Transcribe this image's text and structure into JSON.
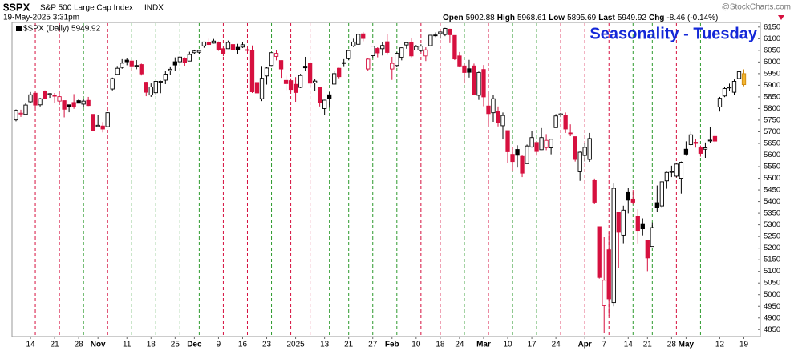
{
  "header": {
    "symbol": "$SPX",
    "name": "S&P 500 Large Cap Index",
    "exchange": "INDX",
    "date": "19-May-2025 3:31pm",
    "brand": "@StockCharts.com",
    "quote": [
      "Open",
      "5902.88",
      "High",
      "5968.61",
      "Low",
      "5895.69",
      "Last",
      "5949.92",
      "Chg",
      "-8.46 (-0.14%)"
    ]
  },
  "chart_data": {
    "type": "candlestick",
    "title": "Seasonality - Tuesday",
    "legend": "$SPX (Daily) 5949.92",
    "up_color": "#000000",
    "down_color": "#d6103f",
    "last_color": "#f2b630",
    "title_color": "#1428d8",
    "ylim": [
      4820,
      6170
    ],
    "yticks": [
      4850,
      4900,
      4950,
      5000,
      5050,
      5100,
      5150,
      5200,
      5250,
      5300,
      5350,
      5400,
      5450,
      5500,
      5550,
      5600,
      5650,
      5700,
      5750,
      5800,
      5850,
      5900,
      5950,
      6000,
      6050,
      6100,
      6150
    ],
    "categories": [
      null,
      null,
      null,
      "14",
      null,
      null,
      null,
      null,
      "21",
      null,
      null,
      null,
      null,
      "28",
      null,
      null,
      null,
      "Nov",
      null,
      null,
      null,
      null,
      null,
      "11",
      null,
      null,
      null,
      null,
      "18",
      null,
      null,
      null,
      null,
      "25",
      null,
      null,
      null,
      "Dec",
      null,
      null,
      null,
      null,
      "9",
      null,
      null,
      null,
      null,
      "16",
      null,
      null,
      null,
      null,
      "23",
      null,
      null,
      null,
      null,
      null,
      "2025",
      null,
      null,
      null,
      null,
      null,
      "13",
      null,
      null,
      null,
      null,
      "21",
      null,
      null,
      null,
      null,
      "27",
      null,
      null,
      null,
      "Feb",
      null,
      null,
      null,
      null,
      "10",
      null,
      null,
      null,
      null,
      "18",
      null,
      null,
      null,
      "24",
      null,
      null,
      null,
      null,
      "Mar",
      null,
      null,
      null,
      null,
      "10",
      null,
      null,
      null,
      null,
      "17",
      null,
      null,
      null,
      null,
      "24",
      null,
      null,
      null,
      null,
      null,
      "Apr",
      null,
      null,
      null,
      "7",
      null,
      null,
      null,
      null,
      "14",
      null,
      null,
      null,
      "21",
      null,
      null,
      null,
      null,
      "28",
      null,
      null,
      "May",
      null,
      null,
      null,
      null,
      null,
      null,
      "12",
      null,
      null,
      null,
      null,
      "19"
    ],
    "candles": [
      [
        5751,
        5796,
        5745,
        5792
      ],
      [
        5778,
        5795,
        5764,
        5780
      ],
      [
        5775,
        5822,
        5772,
        5815
      ],
      [
        5829,
        5871,
        5824,
        5859
      ],
      [
        5866,
        5870,
        5804,
        5815
      ],
      [
        5816,
        5846,
        5809,
        5842
      ],
      [
        5875,
        5878,
        5840,
        5841
      ],
      [
        5860,
        5866,
        5846,
        5864
      ],
      [
        5857,
        5867,
        5824,
        5853
      ],
      [
        5832,
        5863,
        5825,
        5851
      ],
      [
        5834,
        5834,
        5762,
        5797
      ],
      [
        5816,
        5817,
        5784,
        5809
      ],
      [
        5826,
        5862,
        5799,
        5808
      ],
      [
        5834,
        5842,
        5823,
        5823
      ],
      [
        5819,
        5842,
        5807,
        5832
      ],
      [
        5835,
        5850,
        5811,
        5813
      ],
      [
        5775,
        5775,
        5703,
        5705
      ],
      [
        5723,
        5772,
        5723,
        5728
      ],
      [
        5725,
        5742,
        5697,
        5712
      ],
      [
        5722,
        5784,
        5722,
        5782
      ],
      [
        5884,
        5933,
        5878,
        5929
      ],
      [
        5947,
        5983,
        5946,
        5973
      ],
      [
        5977,
        6012,
        5971,
        5995
      ],
      [
        6008,
        6018,
        5986,
        6001
      ],
      [
        6004,
        6007,
        5960,
        5983
      ],
      [
        5985,
        6008,
        5969,
        5985
      ],
      [
        5989,
        5993,
        5942,
        5949
      ],
      [
        5913,
        5915,
        5853,
        5870
      ],
      [
        5858,
        5908,
        5850,
        5893
      ],
      [
        5868,
        5918,
        5857,
        5917
      ],
      [
        5917,
        5920,
        5866,
        5917
      ],
      [
        5922,
        5963,
        5905,
        5948
      ],
      [
        5963,
        5981,
        5944,
        5969
      ],
      [
        6001,
        6020,
        5963,
        5987
      ],
      [
        6001,
        6025,
        5994,
        6021
      ],
      [
        6015,
        6020,
        5984,
        5998
      ],
      [
        6004,
        6044,
        6004,
        6032
      ],
      [
        6040,
        6053,
        6035,
        6047
      ],
      [
        6042,
        6052,
        6034,
        6049
      ],
      [
        6069,
        6087,
        6061,
        6086
      ],
      [
        6085,
        6100,
        6072,
        6075
      ],
      [
        6081,
        6099,
        6079,
        6090
      ],
      [
        6084,
        6088,
        6048,
        6052
      ],
      [
        6057,
        6065,
        6025,
        6034
      ],
      [
        6057,
        6092,
        6056,
        6084
      ],
      [
        6075,
        6079,
        6051,
        6051
      ],
      [
        6063,
        6078,
        6035,
        6051
      ],
      [
        6064,
        6085,
        6060,
        6074
      ],
      [
        6053,
        6058,
        6035,
        6050
      ],
      [
        6048,
        6071,
        5867,
        5872
      ],
      [
        5912,
        5935,
        5866,
        5867
      ],
      [
        5842,
        5983,
        5832,
        5930
      ],
      [
        5940,
        5978,
        5903,
        5974
      ],
      [
        5985,
        6040,
        5983,
        6040
      ],
      [
        6024,
        6050,
        6007,
        6037
      ],
      [
        6006,
        6007,
        5932,
        5970
      ],
      [
        5921,
        5941,
        5879,
        5907
      ],
      [
        5920,
        5930,
        5871,
        5882
      ],
      [
        5904,
        5935,
        5829,
        5869
      ],
      [
        5891,
        5949,
        5888,
        5942
      ],
      [
        5982,
        6022,
        5961,
        5975
      ],
      [
        5994,
        6000,
        5891,
        5909
      ],
      [
        5910,
        5927,
        5874,
        5918
      ],
      [
        5890,
        5890,
        5809,
        5827
      ],
      [
        5800,
        5838,
        5773,
        5836
      ],
      [
        5859,
        5871,
        5804,
        5843
      ],
      [
        5905,
        5960,
        5905,
        5950
      ],
      [
        5973,
        5975,
        5930,
        5937
      ],
      [
        5995,
        6012,
        5982,
        5997
      ],
      [
        6014,
        6051,
        6007,
        6049
      ],
      [
        6069,
        6100,
        6064,
        6086
      ],
      [
        6076,
        6119,
        6075,
        6119
      ],
      [
        6121,
        6129,
        6089,
        6101
      ],
      [
        5970,
        6017,
        5962,
        6012
      ],
      [
        6027,
        6069,
        6020,
        6068
      ],
      [
        6058,
        6063,
        6020,
        6039
      ],
      [
        6057,
        6086,
        6028,
        6071
      ],
      [
        6087,
        6121,
        6031,
        6041
      ],
      [
        5970,
        6022,
        5923,
        5994
      ],
      [
        5985,
        6042,
        5977,
        6037
      ],
      [
        6020,
        6062,
        6007,
        6061
      ],
      [
        6073,
        6085,
        6057,
        6083
      ],
      [
        6084,
        6101,
        6020,
        6026
      ],
      [
        6051,
        6073,
        6050,
        6066
      ],
      [
        6049,
        6076,
        6043,
        6068
      ],
      [
        6026,
        6063,
        6004,
        6052
      ],
      [
        6070,
        6115,
        6070,
        6115
      ],
      [
        6116,
        6127,
        6107,
        6115
      ],
      [
        6122,
        6129,
        6100,
        6129
      ],
      [
        6118,
        6147,
        6111,
        6144
      ],
      [
        6141,
        6143,
        6081,
        6117
      ],
      [
        6114,
        6114,
        6008,
        6013
      ],
      [
        6026,
        6043,
        5977,
        5983
      ],
      [
        5983,
        5992,
        5908,
        5955
      ],
      [
        5971,
        6009,
        5933,
        5956
      ],
      [
        5983,
        5993,
        5858,
        5861
      ],
      [
        5857,
        5959,
        5837,
        5955
      ],
      [
        5968,
        5987,
        5810,
        5850
      ],
      [
        5811,
        5866,
        5732,
        5778
      ],
      [
        5782,
        5860,
        5743,
        5842
      ],
      [
        5787,
        5809,
        5723,
        5739
      ],
      [
        5726,
        5783,
        5667,
        5770
      ],
      [
        5705,
        5705,
        5565,
        5614
      ],
      [
        5603,
        5636,
        5529,
        5572
      ],
      [
        5624,
        5642,
        5546,
        5599
      ],
      [
        5594,
        5598,
        5505,
        5522
      ],
      [
        5563,
        5645,
        5563,
        5639
      ],
      [
        5635,
        5703,
        5632,
        5675
      ],
      [
        5654,
        5655,
        5597,
        5615
      ],
      [
        5623,
        5716,
        5622,
        5675
      ],
      [
        5632,
        5690,
        5621,
        5663
      ],
      [
        5631,
        5670,
        5603,
        5668
      ],
      [
        5718,
        5776,
        5718,
        5768
      ],
      [
        5772,
        5781,
        5763,
        5777
      ],
      [
        5771,
        5783,
        5695,
        5712
      ],
      [
        5695,
        5732,
        5681,
        5693
      ],
      [
        5679,
        5679,
        5572,
        5581
      ],
      [
        5528,
        5615,
        5489,
        5612
      ],
      [
        5598,
        5651,
        5572,
        5633
      ],
      [
        5581,
        5695,
        5571,
        5671
      ],
      [
        5492,
        5499,
        5390,
        5397
      ],
      [
        5292,
        5292,
        5069,
        5074
      ],
      [
        4953,
        5247,
        4835,
        5062
      ],
      [
        5193,
        5267,
        4910,
        4982
      ],
      [
        4966,
        5481,
        4950,
        5457
      ],
      [
        5353,
        5354,
        5115,
        5268
      ],
      [
        5256,
        5382,
        5221,
        5363
      ],
      [
        5442,
        5460,
        5349,
        5406
      ],
      [
        5411,
        5450,
        5387,
        5397
      ],
      [
        5335,
        5367,
        5220,
        5276
      ],
      [
        5305,
        5328,
        5255,
        5283
      ],
      [
        5232,
        5232,
        5101,
        5158
      ],
      [
        5207,
        5310,
        5207,
        5288
      ],
      [
        5395,
        5469,
        5356,
        5376
      ],
      [
        5381,
        5486,
        5371,
        5485
      ],
      [
        5489,
        5528,
        5455,
        5525
      ],
      [
        5529,
        5554,
        5505,
        5529
      ],
      [
        5509,
        5563,
        5504,
        5561
      ],
      [
        5500,
        5572,
        5434,
        5569
      ],
      [
        5625,
        5659,
        5597,
        5604
      ],
      [
        5645,
        5700,
        5640,
        5687
      ],
      [
        5655,
        5669,
        5632,
        5650
      ],
      [
        5631,
        5641,
        5593,
        5607
      ],
      [
        5625,
        5654,
        5588,
        5631
      ],
      [
        5663,
        5721,
        5651,
        5664
      ],
      [
        5680,
        5691,
        5648,
        5660
      ],
      [
        5807,
        5850,
        5787,
        5844
      ],
      [
        5854,
        5894,
        5849,
        5886
      ],
      [
        5891,
        5907,
        5875,
        5892
      ],
      [
        5870,
        5925,
        5860,
        5917
      ],
      [
        5929,
        5959,
        5910,
        5958
      ],
      [
        5902.88,
        5968.61,
        5895.69,
        5949.92
      ]
    ],
    "tuesdays": [
      {
        "category": 4,
        "color": "#d6103f"
      },
      {
        "category": 9,
        "color": "#d6103f"
      },
      {
        "category": 14,
        "color": "#2e9a2e"
      },
      {
        "category": 19,
        "color": "#d6103f"
      },
      {
        "category": 24,
        "color": "#2e9a2e"
      },
      {
        "category": 29,
        "color": "#2e9a2e"
      },
      {
        "category": 34,
        "color": "#2e9a2e"
      },
      {
        "category": 38,
        "color": "#2e9a2e"
      },
      {
        "category": 43,
        "color": "#d6103f"
      },
      {
        "category": 48,
        "color": "#d6103f"
      },
      {
        "category": 53,
        "color": "#2e9a2e"
      },
      {
        "category": 57,
        "color": "#d6103f"
      },
      {
        "category": 61,
        "color": "#d6103f"
      },
      {
        "category": 65,
        "color": "#2e9a2e"
      },
      {
        "category": 69,
        "color": "#2e9a2e"
      },
      {
        "category": 74,
        "color": "#2e9a2e"
      },
      {
        "category": 79,
        "color": "#2e9a2e"
      },
      {
        "category": 84,
        "color": "#d6103f"
      },
      {
        "category": 88,
        "color": "#d6103f"
      },
      {
        "category": 93,
        "color": "#2e9a2e"
      },
      {
        "category": 98,
        "color": "#d6103f"
      },
      {
        "category": 103,
        "color": "#2e9a2e"
      },
      {
        "category": 108,
        "color": "#2e9a2e"
      },
      {
        "category": 113,
        "color": "#d6103f"
      },
      {
        "category": 118,
        "color": "#d6103f"
      },
      {
        "category": 123,
        "color": "#d6103f"
      },
      {
        "category": 128,
        "color": "#2e9a2e"
      },
      {
        "category": 132,
        "color": "#2e9a2e"
      },
      {
        "category": 137,
        "color": "#d6103f"
      },
      {
        "category": 142,
        "color": "#2e9a2e"
      }
    ]
  }
}
